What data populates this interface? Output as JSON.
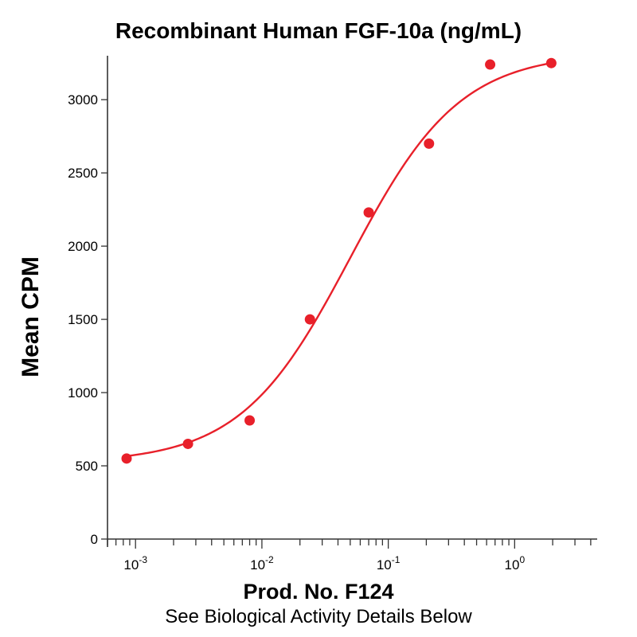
{
  "chart_data": {
    "type": "scatter",
    "title": "Recombinant Human FGF-10a (ng/mL)",
    "xlabel": "Prod. No. F124",
    "subtitle": "See Biological Activity Details Below",
    "ylabel": "Mean CPM",
    "x_scale": "log",
    "xlim": [
      0.0006,
      4.5
    ],
    "ylim": [
      0,
      3300
    ],
    "yticks": [
      0,
      500,
      1000,
      1500,
      2000,
      2500,
      3000
    ],
    "yticklabels": [
      "0",
      "500",
      "1000",
      "1500",
      "2000",
      "2500",
      "3000"
    ],
    "xticks": [
      0.001,
      0.01,
      0.1,
      1
    ],
    "xtick_bases": [
      "10",
      "10",
      "10",
      "10"
    ],
    "xtick_exponents": [
      "-3",
      "-2",
      "-1",
      "0"
    ],
    "grid": false,
    "legend": "none",
    "series": [
      {
        "kind": "points",
        "color": "#e8202a",
        "x": [
          0.00085,
          0.0026,
          0.008,
          0.024,
          0.07,
          0.21,
          0.64,
          1.95
        ],
        "y": [
          550,
          650,
          810,
          1500,
          2230,
          2700,
          3240,
          3250
        ]
      },
      {
        "kind": "fit-curve",
        "color": "#e8202a",
        "model": "4PL",
        "params": {
          "bottom": 520,
          "top": 3320,
          "ec50": 0.05,
          "hill": 1.0
        }
      }
    ]
  }
}
